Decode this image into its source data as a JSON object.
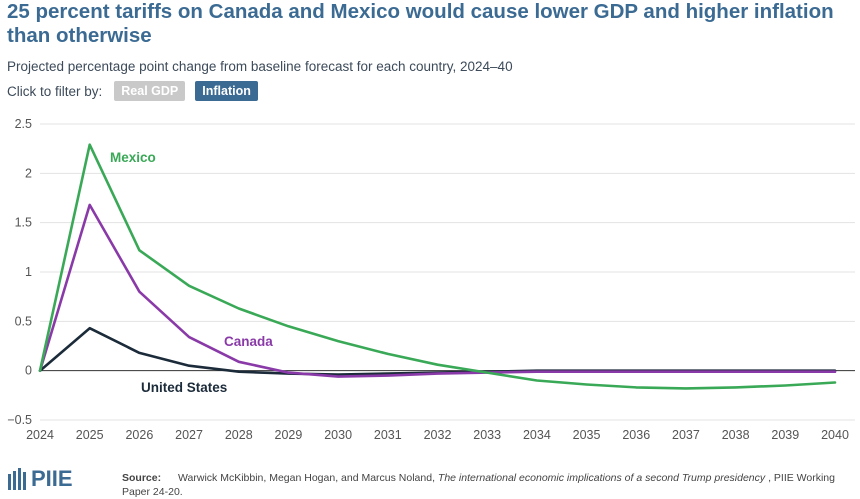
{
  "title": "25 percent tariffs on Canada and Mexico would cause lower GDP and higher inflation than otherwise",
  "subtitle": "Projected percentage point change from baseline forecast for each country, 2024–40",
  "filter": {
    "label": "Click to filter by:",
    "options": [
      "Real GDP",
      "Inflation"
    ],
    "selected": "Inflation"
  },
  "colors": {
    "title": "#3b6a93",
    "mexico": "#3aa957",
    "canada": "#8a3aa8",
    "united_states": "#1c2b3a",
    "inactive_pill": "#c9c9c9",
    "active_pill": "#3b6a93"
  },
  "chart_data": {
    "type": "line",
    "title": "25 percent tariffs on Canada and Mexico would cause lower GDP and higher inflation than otherwise",
    "xlabel": "",
    "ylabel": "",
    "x": [
      2024,
      2025,
      2026,
      2027,
      2028,
      2029,
      2030,
      2031,
      2032,
      2033,
      2034,
      2035,
      2036,
      2037,
      2038,
      2039,
      2040
    ],
    "ylim": [
      -0.5,
      2.5
    ],
    "yticks": [
      -0.5,
      0,
      0.5,
      1,
      1.5,
      2,
      2.5
    ],
    "ytick_labels": [
      "−0.5",
      "0",
      "0.5",
      "1",
      "1.5",
      "2",
      "2.5"
    ],
    "grid": "horizontal",
    "series": [
      {
        "name": "Mexico",
        "values": [
          0,
          2.29,
          1.22,
          0.86,
          0.63,
          0.45,
          0.3,
          0.17,
          0.06,
          -0.02,
          -0.1,
          -0.14,
          -0.17,
          -0.18,
          -0.17,
          -0.15,
          -0.12
        ]
      },
      {
        "name": "Canada",
        "values": [
          0,
          1.68,
          0.8,
          0.34,
          0.09,
          -0.02,
          -0.06,
          -0.05,
          -0.03,
          -0.02,
          -0.01,
          -0.01,
          -0.01,
          -0.01,
          -0.01,
          -0.01,
          -0.01
        ]
      },
      {
        "name": "United States",
        "values": [
          0,
          0.43,
          0.18,
          0.05,
          -0.01,
          -0.03,
          -0.04,
          -0.03,
          -0.02,
          -0.01,
          0,
          0,
          0,
          0,
          0,
          0,
          0
        ]
      }
    ]
  },
  "footer": {
    "logo_text": "PIIE",
    "source_key": "Source:",
    "source_authors": "Warwick McKibbin, Megan Hogan, and Marcus Noland,",
    "source_title": "The international economic implications of a second Trump presidency",
    "source_suffix": ", PIIE Working Paper 24-20."
  }
}
